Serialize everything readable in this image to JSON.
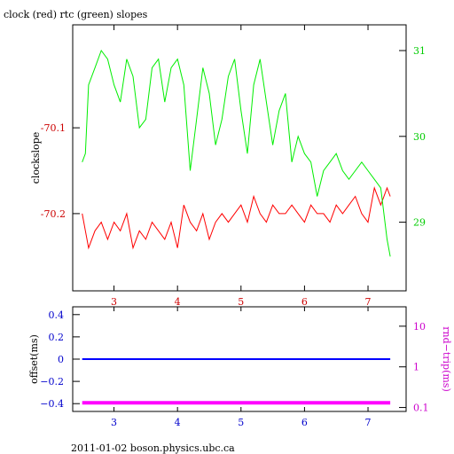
{
  "colors": {
    "clock": "#ff0000",
    "rtc": "#00ee00",
    "offset": "#0000ff",
    "roundtrip": "#ff00ff",
    "axis_red": "#cc0000",
    "axis_green": "#00cc00",
    "axis_blue": "#0000cc",
    "axis_magenta": "#cc00cc"
  },
  "chart_data": [
    {
      "type": "line",
      "title": "clock (red) rtc (green) slopes",
      "ylabel": "clockslope",
      "xlabel": "",
      "xlim": [
        2.35,
        7.6
      ],
      "ylim": [
        -70.29,
        -69.98
      ],
      "y2lim": [
        28.2,
        31.3
      ],
      "xticks": [
        "3",
        "4",
        "5",
        "6",
        "7"
      ],
      "yticks": [
        "-70.1",
        "-70.2"
      ],
      "y2ticks": [
        "31",
        "30",
        "29"
      ],
      "grid": false,
      "series": [
        {
          "name": "clock",
          "axis": "left",
          "x": [
            2.5,
            2.55,
            2.6,
            2.7,
            2.8,
            2.9,
            3.0,
            3.1,
            3.2,
            3.3,
            3.4,
            3.5,
            3.6,
            3.7,
            3.8,
            3.9,
            4.0,
            4.1,
            4.2,
            4.3,
            4.4,
            4.5,
            4.6,
            4.7,
            4.8,
            4.9,
            5.0,
            5.1,
            5.2,
            5.3,
            5.4,
            5.5,
            5.6,
            5.7,
            5.8,
            5.9,
            6.0,
            6.1,
            6.2,
            6.3,
            6.4,
            6.5,
            6.6,
            6.7,
            6.8,
            6.9,
            7.0,
            7.1,
            7.2,
            7.3,
            7.35
          ],
          "y": [
            -70.2,
            -70.22,
            -70.24,
            -70.22,
            -70.21,
            -70.23,
            -70.21,
            -70.22,
            -70.2,
            -70.24,
            -70.22,
            -70.23,
            -70.21,
            -70.22,
            -70.23,
            -70.21,
            -70.24,
            -70.19,
            -70.21,
            -70.22,
            -70.2,
            -70.23,
            -70.21,
            -70.2,
            -70.21,
            -70.2,
            -70.19,
            -70.21,
            -70.18,
            -70.2,
            -70.21,
            -70.19,
            -70.2,
            -70.2,
            -70.19,
            -70.2,
            -70.21,
            -70.19,
            -70.2,
            -70.2,
            -70.21,
            -70.19,
            -70.2,
            -70.19,
            -70.18,
            -70.2,
            -70.21,
            -70.17,
            -70.19,
            -70.17,
            -70.18
          ]
        },
        {
          "name": "rtc",
          "axis": "right",
          "x": [
            2.5,
            2.55,
            2.6,
            2.7,
            2.8,
            2.9,
            3.0,
            3.1,
            3.2,
            3.3,
            3.4,
            3.5,
            3.6,
            3.7,
            3.8,
            3.9,
            4.0,
            4.1,
            4.2,
            4.3,
            4.4,
            4.5,
            4.6,
            4.7,
            4.8,
            4.9,
            5.0,
            5.1,
            5.2,
            5.3,
            5.4,
            5.5,
            5.6,
            5.7,
            5.8,
            5.9,
            6.0,
            6.1,
            6.2,
            6.3,
            6.4,
            6.5,
            6.6,
            6.7,
            6.8,
            6.9,
            7.0,
            7.1,
            7.2,
            7.3,
            7.35
          ],
          "y": [
            29.7,
            29.8,
            30.6,
            30.8,
            31.0,
            30.9,
            30.6,
            30.4,
            30.9,
            30.7,
            30.1,
            30.2,
            30.8,
            30.9,
            30.4,
            30.8,
            30.9,
            30.6,
            29.6,
            30.2,
            30.8,
            30.5,
            29.9,
            30.2,
            30.7,
            30.9,
            30.3,
            29.8,
            30.6,
            30.9,
            30.4,
            29.9,
            30.3,
            30.5,
            29.7,
            30.0,
            29.8,
            29.7,
            29.3,
            29.6,
            29.7,
            29.8,
            29.6,
            29.5,
            29.6,
            29.7,
            29.6,
            29.5,
            29.4,
            28.8,
            28.6
          ]
        }
      ]
    },
    {
      "type": "scatter",
      "ylabel": "offset(ms)",
      "y2label": "rnd−trip(ms)",
      "xlim": [
        2.35,
        7.6
      ],
      "ylim": [
        -0.47,
        0.47
      ],
      "y2lim_log": [
        0.08,
        30
      ],
      "xticks": [
        "3",
        "4",
        "5",
        "6",
        "7"
      ],
      "yticks": [
        "0.4",
        "0.2",
        "0",
        "−0.2",
        "−0.4"
      ],
      "y2ticks": [
        "10",
        "1",
        "0.1"
      ],
      "grid": false,
      "series": [
        {
          "name": "offset",
          "axis": "left",
          "x": [
            2.5,
            3.0,
            3.5,
            4.0,
            4.5,
            5.0,
            5.5,
            6.0,
            6.5,
            7.0,
            7.35
          ],
          "y": [
            0.0,
            0.0,
            0.0,
            0.0,
            0.0,
            0.0,
            0.0,
            0.0,
            0.0,
            0.0,
            0.0
          ]
        },
        {
          "name": "roundtrip",
          "axis": "right",
          "x": [
            2.5,
            3.0,
            3.5,
            4.0,
            4.5,
            5.0,
            5.5,
            6.0,
            6.5,
            7.0,
            7.35
          ],
          "y": [
            0.13,
            0.13,
            0.13,
            0.13,
            0.13,
            0.13,
            0.13,
            0.13,
            0.13,
            0.13,
            0.13
          ]
        }
      ]
    }
  ],
  "footer": "2011-01-02 boson.physics.ubc.ca"
}
